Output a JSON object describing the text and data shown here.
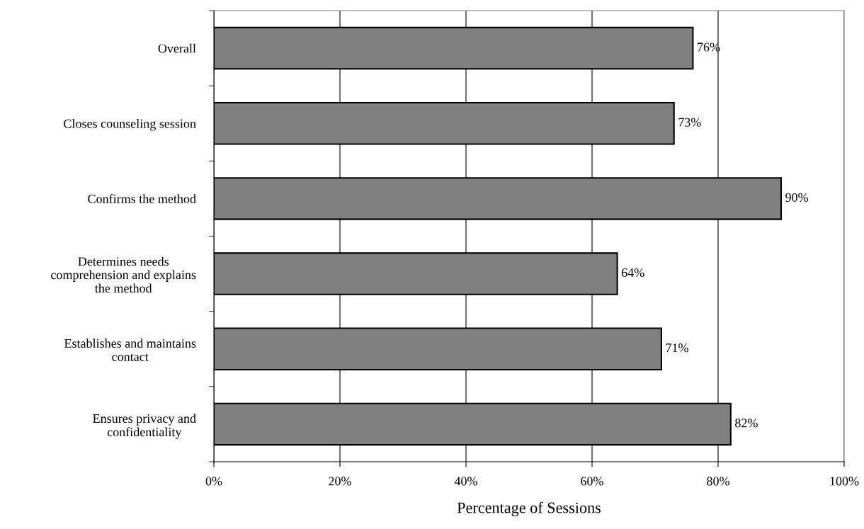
{
  "chart_data": {
    "type": "bar",
    "orientation": "horizontal",
    "xlabel": "Percentage of Sessions",
    "categories": [
      "Overall",
      "Closes counseling session",
      "Confirms the method",
      "Determines needs\ncomprehension and explains\nthe method",
      "Establishes and maintains\ncontact",
      "Ensures privacy and\nconfidentiality"
    ],
    "values": [
      76,
      73,
      90,
      64,
      71,
      82
    ],
    "value_labels": [
      "76%",
      "73%",
      "90%",
      "64%",
      "71%",
      "82%"
    ],
    "color": "#808080",
    "xlim": [
      0,
      100
    ],
    "xticks": [
      {
        "value": 0,
        "label": "0%"
      },
      {
        "value": 20,
        "label": "20%"
      },
      {
        "value": 40,
        "label": "40%"
      },
      {
        "value": 60,
        "label": "60%"
      },
      {
        "value": 80,
        "label": "80%"
      },
      {
        "value": 100,
        "label": "100%"
      }
    ],
    "grid": "x",
    "legend": false
  }
}
